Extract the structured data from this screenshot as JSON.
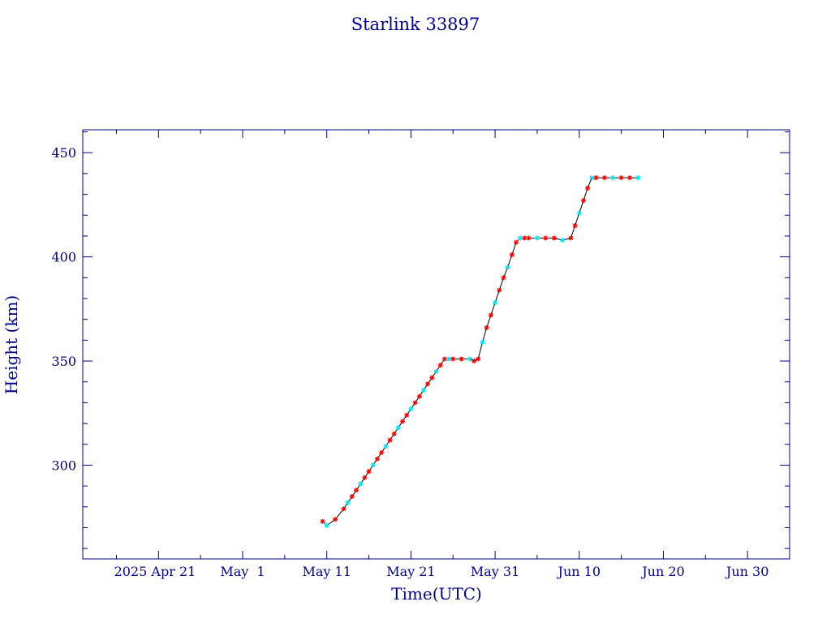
{
  "chart_data": {
    "type": "line",
    "title": "Starlink 33897",
    "xlabel": "Time(UTC)",
    "ylabel": "Height (km)",
    "x_tick_labels": [
      "2025 Apr 21",
      "May  1",
      "May 11",
      "May 21",
      "May 31",
      "Jun 10",
      "Jun 20",
      "Jun 30"
    ],
    "x_tick_dates": [
      "2025-04-21",
      "2025-05-01",
      "2025-05-11",
      "2025-05-21",
      "2025-05-31",
      "2025-06-10",
      "2025-06-20",
      "2025-06-30"
    ],
    "y_tick_labels": [
      "300",
      "350",
      "400",
      "450"
    ],
    "y_ticks": [
      300,
      350,
      400,
      450
    ],
    "xlim": [
      "2025-04-12",
      "2025-07-05"
    ],
    "ylim": [
      255,
      461
    ],
    "grid": false,
    "colors": {
      "axis": "#00008b",
      "line": "#000000",
      "marker_main": "#ff0000",
      "marker_alt": "#00e5ee"
    },
    "series": [
      {
        "x": [
          "2025-05-10T12:00",
          "2025-05-11T00:00",
          "2025-05-12T00:00",
          "2025-05-13T00:00",
          "2025-05-13T12:00",
          "2025-05-14T00:00",
          "2025-05-14T12:00",
          "2025-05-15T00:00",
          "2025-05-15T12:00",
          "2025-05-16T00:00",
          "2025-05-16T12:00",
          "2025-05-17T00:00",
          "2025-05-17T12:00",
          "2025-05-18T00:00",
          "2025-05-18T12:00",
          "2025-05-19T00:00",
          "2025-05-19T12:00",
          "2025-05-20T00:00",
          "2025-05-20T12:00",
          "2025-05-21T00:00",
          "2025-05-21T12:00",
          "2025-05-22T00:00",
          "2025-05-22T12:00",
          "2025-05-23T00:00",
          "2025-05-23T12:00",
          "2025-05-24T00:00",
          "2025-05-24T12:00",
          "2025-05-25T00:00",
          "2025-05-25T12:00",
          "2025-05-26T00:00",
          "2025-05-27T00:00",
          "2025-05-28T00:00",
          "2025-05-28T12:00",
          "2025-05-29T00:00",
          "2025-05-29T12:00",
          "2025-05-30T00:00",
          "2025-05-30T12:00",
          "2025-05-31T00:00",
          "2025-05-31T12:00",
          "2025-06-01T00:00",
          "2025-06-01T12:00",
          "2025-06-02T00:00",
          "2025-06-02T12:00",
          "2025-06-03T00:00",
          "2025-06-03T12:00",
          "2025-06-04T00:00",
          "2025-06-05T00:00",
          "2025-06-06T00:00",
          "2025-06-07T00:00",
          "2025-06-08T00:00",
          "2025-06-09T00:00",
          "2025-06-09T12:00",
          "2025-06-10T00:00",
          "2025-06-10T12:00",
          "2025-06-11T00:00",
          "2025-06-11T12:00",
          "2025-06-12T00:00",
          "2025-06-13T00:00",
          "2025-06-14T00:00",
          "2025-06-15T00:00",
          "2025-06-16T00:00",
          "2025-06-17T00:00"
        ],
        "y": [
          273,
          271,
          274,
          279,
          282,
          285,
          288,
          291,
          294,
          297,
          300,
          303,
          306,
          309,
          312,
          315,
          318,
          321,
          324,
          327,
          330,
          333,
          336,
          339,
          342,
          345,
          348,
          351,
          351,
          351,
          351,
          351,
          350,
          351,
          359,
          366,
          372,
          378,
          384,
          390,
          395,
          401,
          407,
          409,
          409,
          409,
          409,
          409,
          409,
          408,
          409,
          415,
          421,
          427,
          433,
          438,
          438,
          438,
          438,
          438,
          438,
          438
        ]
      }
    ]
  }
}
